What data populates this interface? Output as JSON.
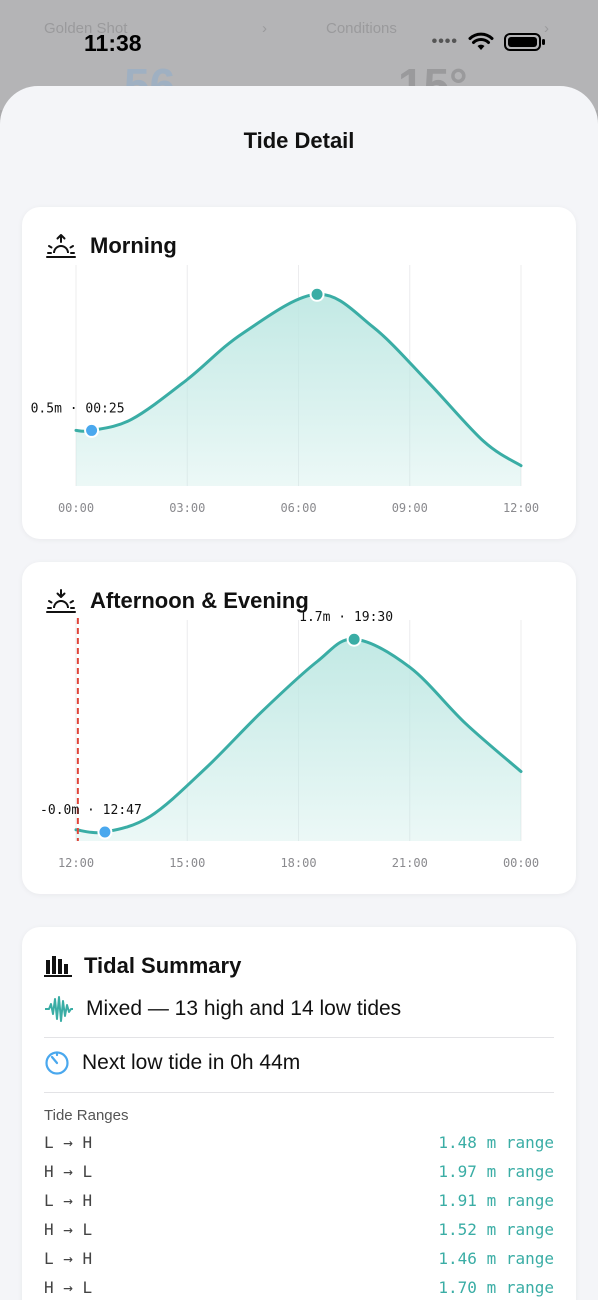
{
  "status_bar": {
    "time": "11:38",
    "signal_dots": "••••"
  },
  "background": {
    "left_label": "Golden Shot",
    "right_label": "Conditions",
    "left_value": "56",
    "right_value": "15°"
  },
  "sheet": {
    "title": "Tide Detail"
  },
  "morning": {
    "title": "Morning",
    "icon": "sunrise-icon",
    "chart_data": {
      "type": "area",
      "x_ticks": [
        "00:00",
        "03:00",
        "06:00",
        "09:00",
        "12:00"
      ],
      "xlim_hours": [
        0,
        12
      ],
      "ylim_m": [
        -0.1,
        2.2
      ],
      "series": [
        {
          "x_hours": [
            0,
            0.42,
            1.5,
            3,
            4.5,
            6.5,
            8,
            9.5,
            11,
            12
          ],
          "y_m": [
            0.5,
            0.5,
            0.62,
            1.05,
            1.55,
            1.97,
            1.62,
            1.02,
            0.38,
            0.12
          ]
        }
      ],
      "markers": [
        {
          "label": "0.5m · 00:25",
          "x_hours": 0.42,
          "y_m": 0.5,
          "kind": "low",
          "color": "#4aa8ee"
        },
        {
          "x_hours": 6.5,
          "y_m": 1.97,
          "kind": "high",
          "color": "#3aada5"
        }
      ],
      "line_color": "#3aada5",
      "fill_color": "#bfe8e3",
      "grid": true
    }
  },
  "afternoon": {
    "title": "Afternoon & Evening",
    "icon": "sunset-icon",
    "chart_data": {
      "type": "area",
      "x_ticks": [
        "12:00",
        "15:00",
        "18:00",
        "21:00",
        "00:00"
      ],
      "xlim_hours": [
        12,
        24
      ],
      "ylim_m": [
        -0.1,
        1.8
      ],
      "series": [
        {
          "x_hours": [
            12,
            12.78,
            14,
            15.5,
            17,
            18.5,
            19.5,
            21,
            22.5,
            24
          ],
          "y_m": [
            0.0,
            -0.02,
            0.12,
            0.55,
            1.05,
            1.5,
            1.7,
            1.45,
            0.95,
            0.52
          ]
        }
      ],
      "markers": [
        {
          "label": "-0.0m · 12:47",
          "x_hours": 12.78,
          "y_m": -0.02,
          "kind": "low",
          "color": "#4aa8ee"
        },
        {
          "label": "1.7m · 19:30",
          "x_hours": 19.5,
          "y_m": 1.7,
          "kind": "high",
          "color": "#3aada5"
        }
      ],
      "now_hours": 12.05,
      "now_color": "#e0453a",
      "line_color": "#3aada5",
      "fill_color": "#bfe8e3",
      "grid": true
    }
  },
  "summary": {
    "title": "Tidal Summary",
    "type_text": "Mixed — 13 high and 14 low tides",
    "next_text": "Next low tide in 0h 44m",
    "ranges_label": "Tide Ranges",
    "ranges": [
      {
        "dir": "L → H",
        "value": "1.48 m range"
      },
      {
        "dir": "H → L",
        "value": "1.97 m range"
      },
      {
        "dir": "L → H",
        "value": "1.91 m range"
      },
      {
        "dir": "H → L",
        "value": "1.52 m range"
      },
      {
        "dir": "L → H",
        "value": "1.46 m range"
      },
      {
        "dir": "H → L",
        "value": "1.70 m range"
      }
    ]
  }
}
